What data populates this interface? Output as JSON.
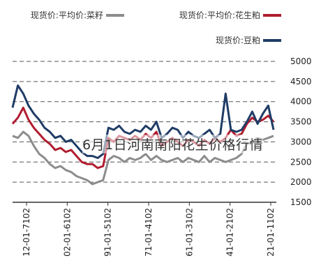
{
  "overlay_caption": "6月1日河南南阳花生价格行情",
  "chart_data": {
    "type": "line",
    "x_tick_labels": [
      "2011-10-12",
      "2012-10-14",
      "2013-10-16",
      "2014-10-17",
      "2015-10-19",
      "2016-10-20",
      "2017-10-21"
    ],
    "yticks": [
      "5000",
      "4500",
      "4000",
      "3500",
      "3000",
      "2500",
      "2000",
      "1500"
    ],
    "ylim": [
      1500,
      5000
    ],
    "grid": true,
    "legend_position": "top",
    "series": [
      {
        "name": "现货价:平均价:菜籽",
        "color": "#8c8c8c",
        "values": [
          3150,
          3100,
          3050,
          3100,
          3000,
          2950,
          2700,
          2600,
          2550,
          2500,
          2550,
          2600,
          2500,
          2650,
          2500,
          2550,
          2600,
          2500,
          2600,
          2550,
          2500,
          2550,
          2650,
          2550,
          2700,
          2600,
          2550,
          2600,
          2500,
          2600,
          2650,
          2550,
          2050,
          2000,
          1950,
          2050,
          2100,
          2150,
          2250,
          2300,
          2400,
          2350,
          2450,
          2600,
          2700,
          2900,
          3150,
          3250,
          3100,
          3150
        ]
      },
      {
        "name": "现货价:平均价:花生粕",
        "color": "#b01c2e",
        "values": [
          3500,
          3650,
          3550,
          3500,
          3600,
          3450,
          3200,
          3150,
          3300,
          3100,
          3000,
          3100,
          2950,
          3050,
          2900,
          3000,
          3050,
          2900,
          3000,
          3100,
          3000,
          2900,
          3250,
          3100,
          3200,
          3050,
          3150,
          3050,
          3100,
          3150,
          3000,
          3100,
          2400,
          2350,
          2450,
          2450,
          2500,
          2650,
          2800,
          2750,
          2850,
          2800,
          2950,
          3050,
          3200,
          3350,
          3550,
          3850,
          3600,
          3450
        ]
      },
      {
        "name": "现货价:豆粕",
        "color": "#1f3c66",
        "values": [
          3300,
          3900,
          3700,
          3450,
          3750,
          3500,
          3300,
          3250,
          3300,
          4200,
          3200,
          3100,
          3300,
          3200,
          3100,
          3150,
          3250,
          3100,
          3300,
          3350,
          3200,
          3100,
          3500,
          3300,
          3400,
          3250,
          3300,
          3200,
          3250,
          3400,
          3300,
          3350,
          2700,
          2600,
          2650,
          2650,
          2750,
          2900,
          3050,
          3000,
          3150,
          3100,
          3250,
          3350,
          3550,
          3700,
          3900,
          4200,
          4400,
          3850
        ]
      }
    ]
  }
}
